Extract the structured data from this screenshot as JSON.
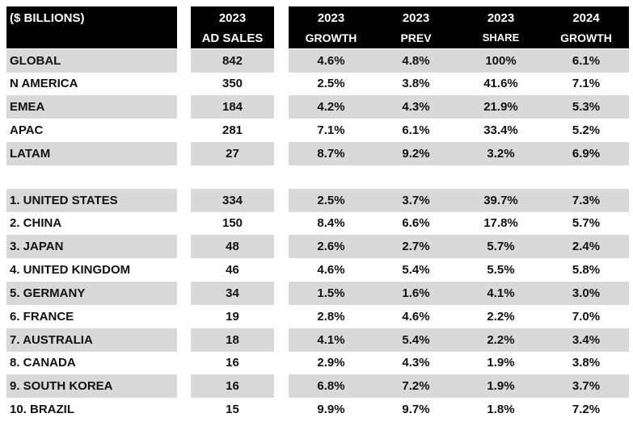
{
  "header": {
    "label": "($ BILLIONS)",
    "columns": [
      {
        "line1": "2023",
        "line2": "AD SALES"
      },
      {
        "line1": "2023",
        "line2": "GROWTH"
      },
      {
        "line1": "2023",
        "line2": "PREV"
      },
      {
        "line1": "2023",
        "line2": "SHARE"
      },
      {
        "line1": "2024",
        "line2": "GROWTH"
      }
    ]
  },
  "colors": {
    "header_bg": "#000000",
    "header_text": "#ffffff",
    "shade": "#d9d9d9"
  },
  "regions": [
    {
      "name": "GLOBAL",
      "ad_sales": "842",
      "growth_2023": "4.6%",
      "prev_2023": "4.8%",
      "share_2023": "100%",
      "growth_2024": "6.1%"
    },
    {
      "name": "N AMERICA",
      "ad_sales": "350",
      "growth_2023": "2.5%",
      "prev_2023": "3.8%",
      "share_2023": "41.6%",
      "growth_2024": "7.1%"
    },
    {
      "name": "EMEA",
      "ad_sales": "184",
      "growth_2023": "4.2%",
      "prev_2023": "4.3%",
      "share_2023": "21.9%",
      "growth_2024": "5.3%"
    },
    {
      "name": "APAC",
      "ad_sales": "281",
      "growth_2023": "7.1%",
      "prev_2023": "6.1%",
      "share_2023": "33.4%",
      "growth_2024": "5.2%"
    },
    {
      "name": "LATAM",
      "ad_sales": "27",
      "growth_2023": "8.7%",
      "prev_2023": "9.2%",
      "share_2023": "3.2%",
      "growth_2024": "6.9%"
    }
  ],
  "countries": [
    {
      "name": "1. UNITED STATES",
      "ad_sales": "334",
      "growth_2023": "2.5%",
      "prev_2023": "3.7%",
      "share_2023": "39.7%",
      "growth_2024": "7.3%"
    },
    {
      "name": "2. CHINA",
      "ad_sales": "150",
      "growth_2023": "8.4%",
      "prev_2023": "6.6%",
      "share_2023": "17.8%",
      "growth_2024": "5.7%"
    },
    {
      "name": "3. JAPAN",
      "ad_sales": "48",
      "growth_2023": "2.6%",
      "prev_2023": "2.7%",
      "share_2023": "5.7%",
      "growth_2024": "2.4%"
    },
    {
      "name": "4. UNITED KINGDOM",
      "ad_sales": "46",
      "growth_2023": "4.6%",
      "prev_2023": "5.4%",
      "share_2023": "5.5%",
      "growth_2024": "5.8%"
    },
    {
      "name": "5. GERMANY",
      "ad_sales": "34",
      "growth_2023": "1.5%",
      "prev_2023": "1.6%",
      "share_2023": "4.1%",
      "growth_2024": "3.0%"
    },
    {
      "name": "6. FRANCE",
      "ad_sales": "19",
      "growth_2023": "2.8%",
      "prev_2023": "4.6%",
      "share_2023": "2.2%",
      "growth_2024": "7.0%"
    },
    {
      "name": "7. AUSTRALIA",
      "ad_sales": "18",
      "growth_2023": "4.1%",
      "prev_2023": "5.4%",
      "share_2023": "2.2%",
      "growth_2024": "3.4%"
    },
    {
      "name": "8. CANADA",
      "ad_sales": "16",
      "growth_2023": "2.9%",
      "prev_2023": "4.3%",
      "share_2023": "1.9%",
      "growth_2024": "3.8%"
    },
    {
      "name": "9. SOUTH KOREA",
      "ad_sales": "16",
      "growth_2023": "6.8%",
      "prev_2023": "7.2%",
      "share_2023": "1.9%",
      "growth_2024": "3.7%"
    },
    {
      "name": "10. BRAZIL",
      "ad_sales": "15",
      "growth_2023": "9.9%",
      "prev_2023": "9.7%",
      "share_2023": "1.8%",
      "growth_2024": "7.2%"
    }
  ]
}
